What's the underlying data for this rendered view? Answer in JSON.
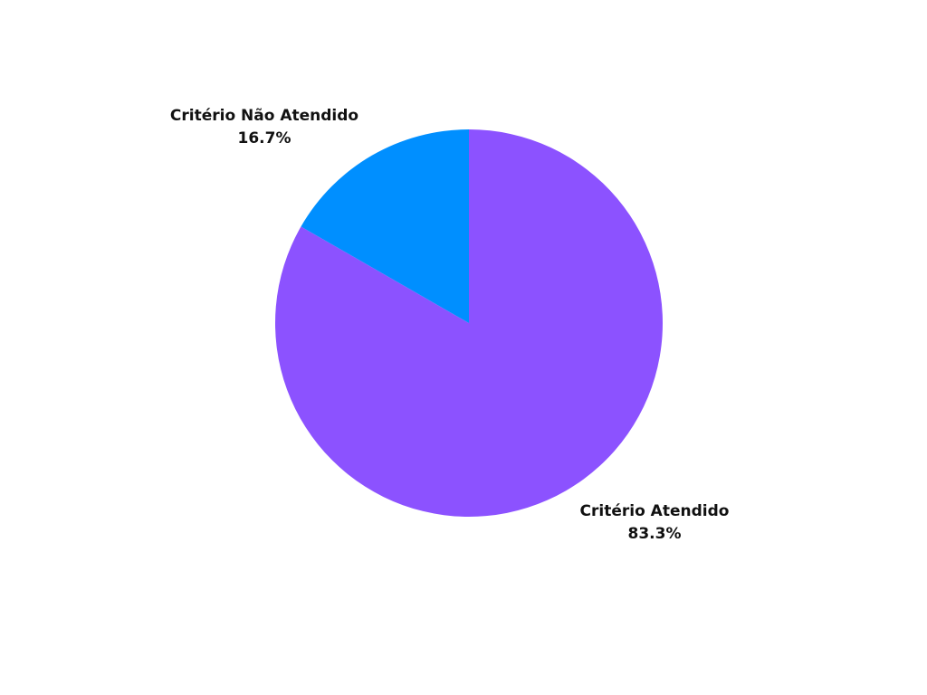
{
  "chart_data": {
    "type": "pie",
    "title": "",
    "slices": [
      {
        "label": "Critério Atendido",
        "value": 83.3,
        "percent_text": "83.3%",
        "color": "#8c52ff"
      },
      {
        "label": "Critério Não Atendido",
        "value": 16.7,
        "percent_text": "16.7%",
        "color": "#008fff"
      }
    ],
    "start_angle_deg": 0,
    "direction": "clockwise",
    "legend": "none",
    "label_placement": "outside"
  }
}
